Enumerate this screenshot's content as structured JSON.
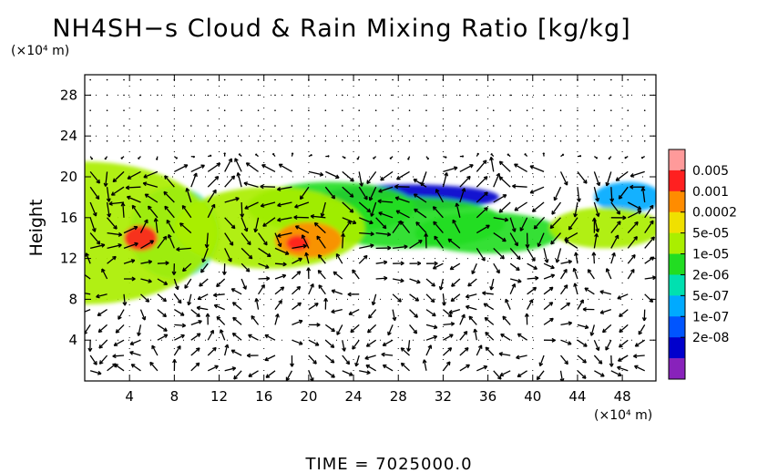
{
  "chart_data": {
    "type": "heatmap",
    "title": "NH4SH−s Cloud & Rain Mixing Ratio [kg/kg]",
    "xlabel": "",
    "ylabel": "Height",
    "x_unit": "(×10⁴ m)",
    "y_unit": "(×10⁴ m)",
    "xlim": [
      0,
      51
    ],
    "ylim": [
      0,
      30
    ],
    "x_ticks": [
      4,
      8,
      12,
      16,
      20,
      24,
      28,
      32,
      36,
      40,
      44,
      48
    ],
    "y_ticks": [
      4,
      8,
      12,
      16,
      20,
      24,
      28
    ],
    "grid": true,
    "time_label": "TIME",
    "time_value": "7025000.0",
    "legend": {
      "placement": "right",
      "labels": [
        "0.005",
        "0.001",
        "0.0002",
        "5e-05",
        "1e-05",
        "2e-06",
        "5e-07",
        "1e-07",
        "2e-08"
      ],
      "colors": [
        "#ff9a9a",
        "#ff2020",
        "#ff8c00",
        "#f0e000",
        "#aaee00",
        "#22dd22",
        "#00e0b0",
        "#00aaff",
        "#0055ff",
        "#0000cc",
        "#8822bb"
      ]
    },
    "series": [
      {
        "name": "",
        "blobs": [
          {
            "x": 0,
            "y": 14.5,
            "w": 23.5,
            "h": 14,
            "level": 4
          },
          {
            "x": 8,
            "y": 14.5,
            "w": 8,
            "h": 9,
            "level": 6
          },
          {
            "x": 5,
            "y": 14,
            "w": 3,
            "h": 2.5,
            "level": 1
          },
          {
            "x": 16.5,
            "y": 15,
            "w": 17,
            "h": 8,
            "level": 4
          },
          {
            "x": 20,
            "y": 13.8,
            "w": 6,
            "h": 3.5,
            "level": 2
          },
          {
            "x": 19,
            "y": 13.5,
            "w": 2,
            "h": 1.5,
            "level": 1
          },
          {
            "x": 22,
            "y": 17,
            "w": 15,
            "h": 5,
            "level": 5
          },
          {
            "x": 29,
            "y": 15.5,
            "w": 17,
            "h": 5,
            "level": 5
          },
          {
            "x": 29,
            "y": 18,
            "w": 16,
            "h": 2.5,
            "level": 9
          },
          {
            "x": 36,
            "y": 14.5,
            "w": 13,
            "h": 4,
            "level": 5
          },
          {
            "x": 46.5,
            "y": 15,
            "w": 10,
            "h": 4,
            "level": 4
          },
          {
            "x": 48.5,
            "y": 18,
            "w": 6,
            "h": 3,
            "level": 7
          }
        ]
      }
    ]
  }
}
